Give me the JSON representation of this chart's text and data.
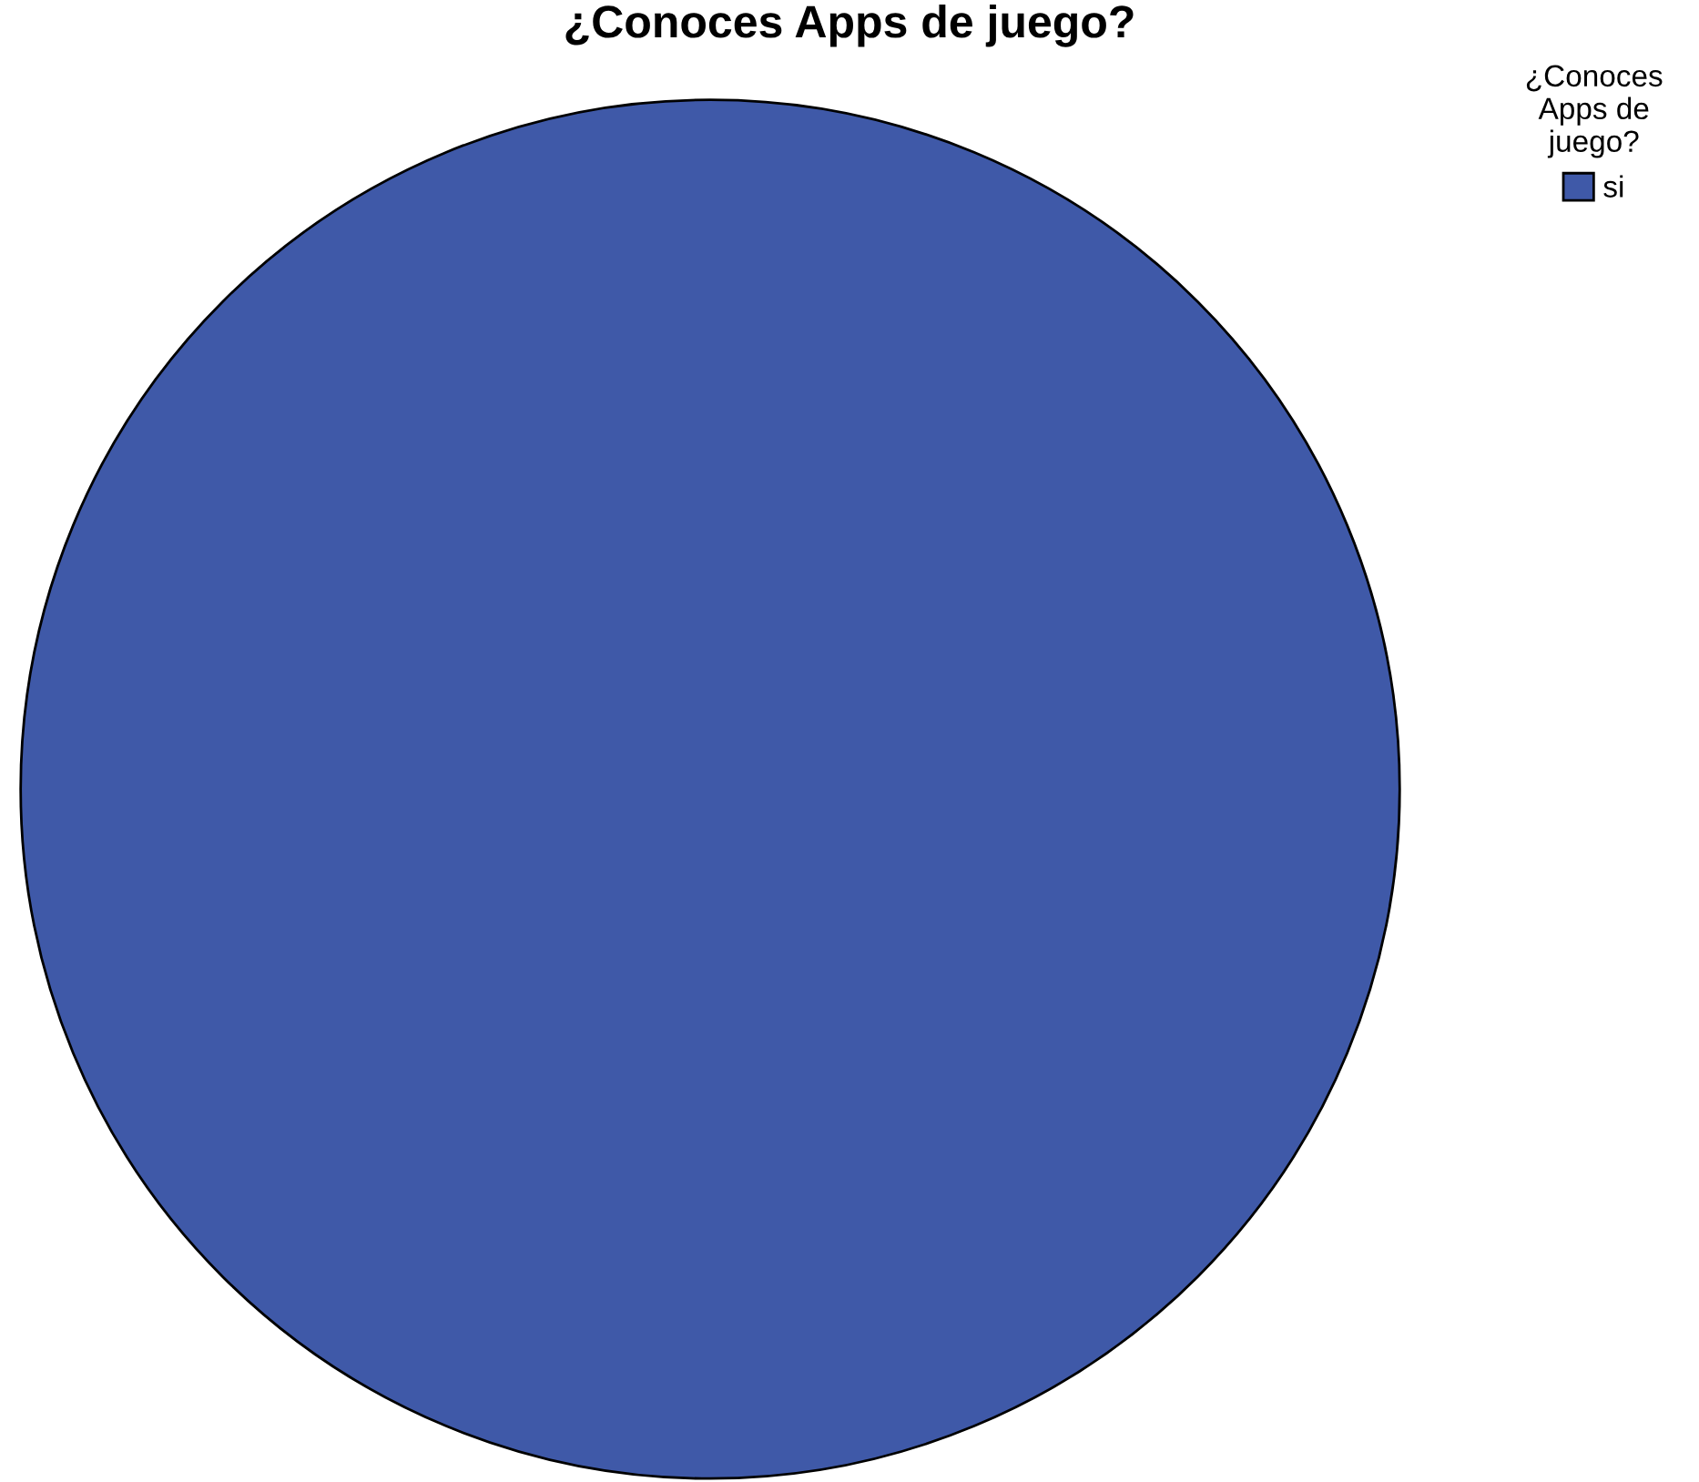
{
  "chart_data": {
    "type": "pie",
    "title": "¿Conoces Apps de juego?",
    "legend_title": "¿Conoces\nApps de\njuego?",
    "categories": [
      "si"
    ],
    "values": [
      100
    ],
    "colors": [
      "#3f59a8"
    ],
    "legend": "top right"
  }
}
